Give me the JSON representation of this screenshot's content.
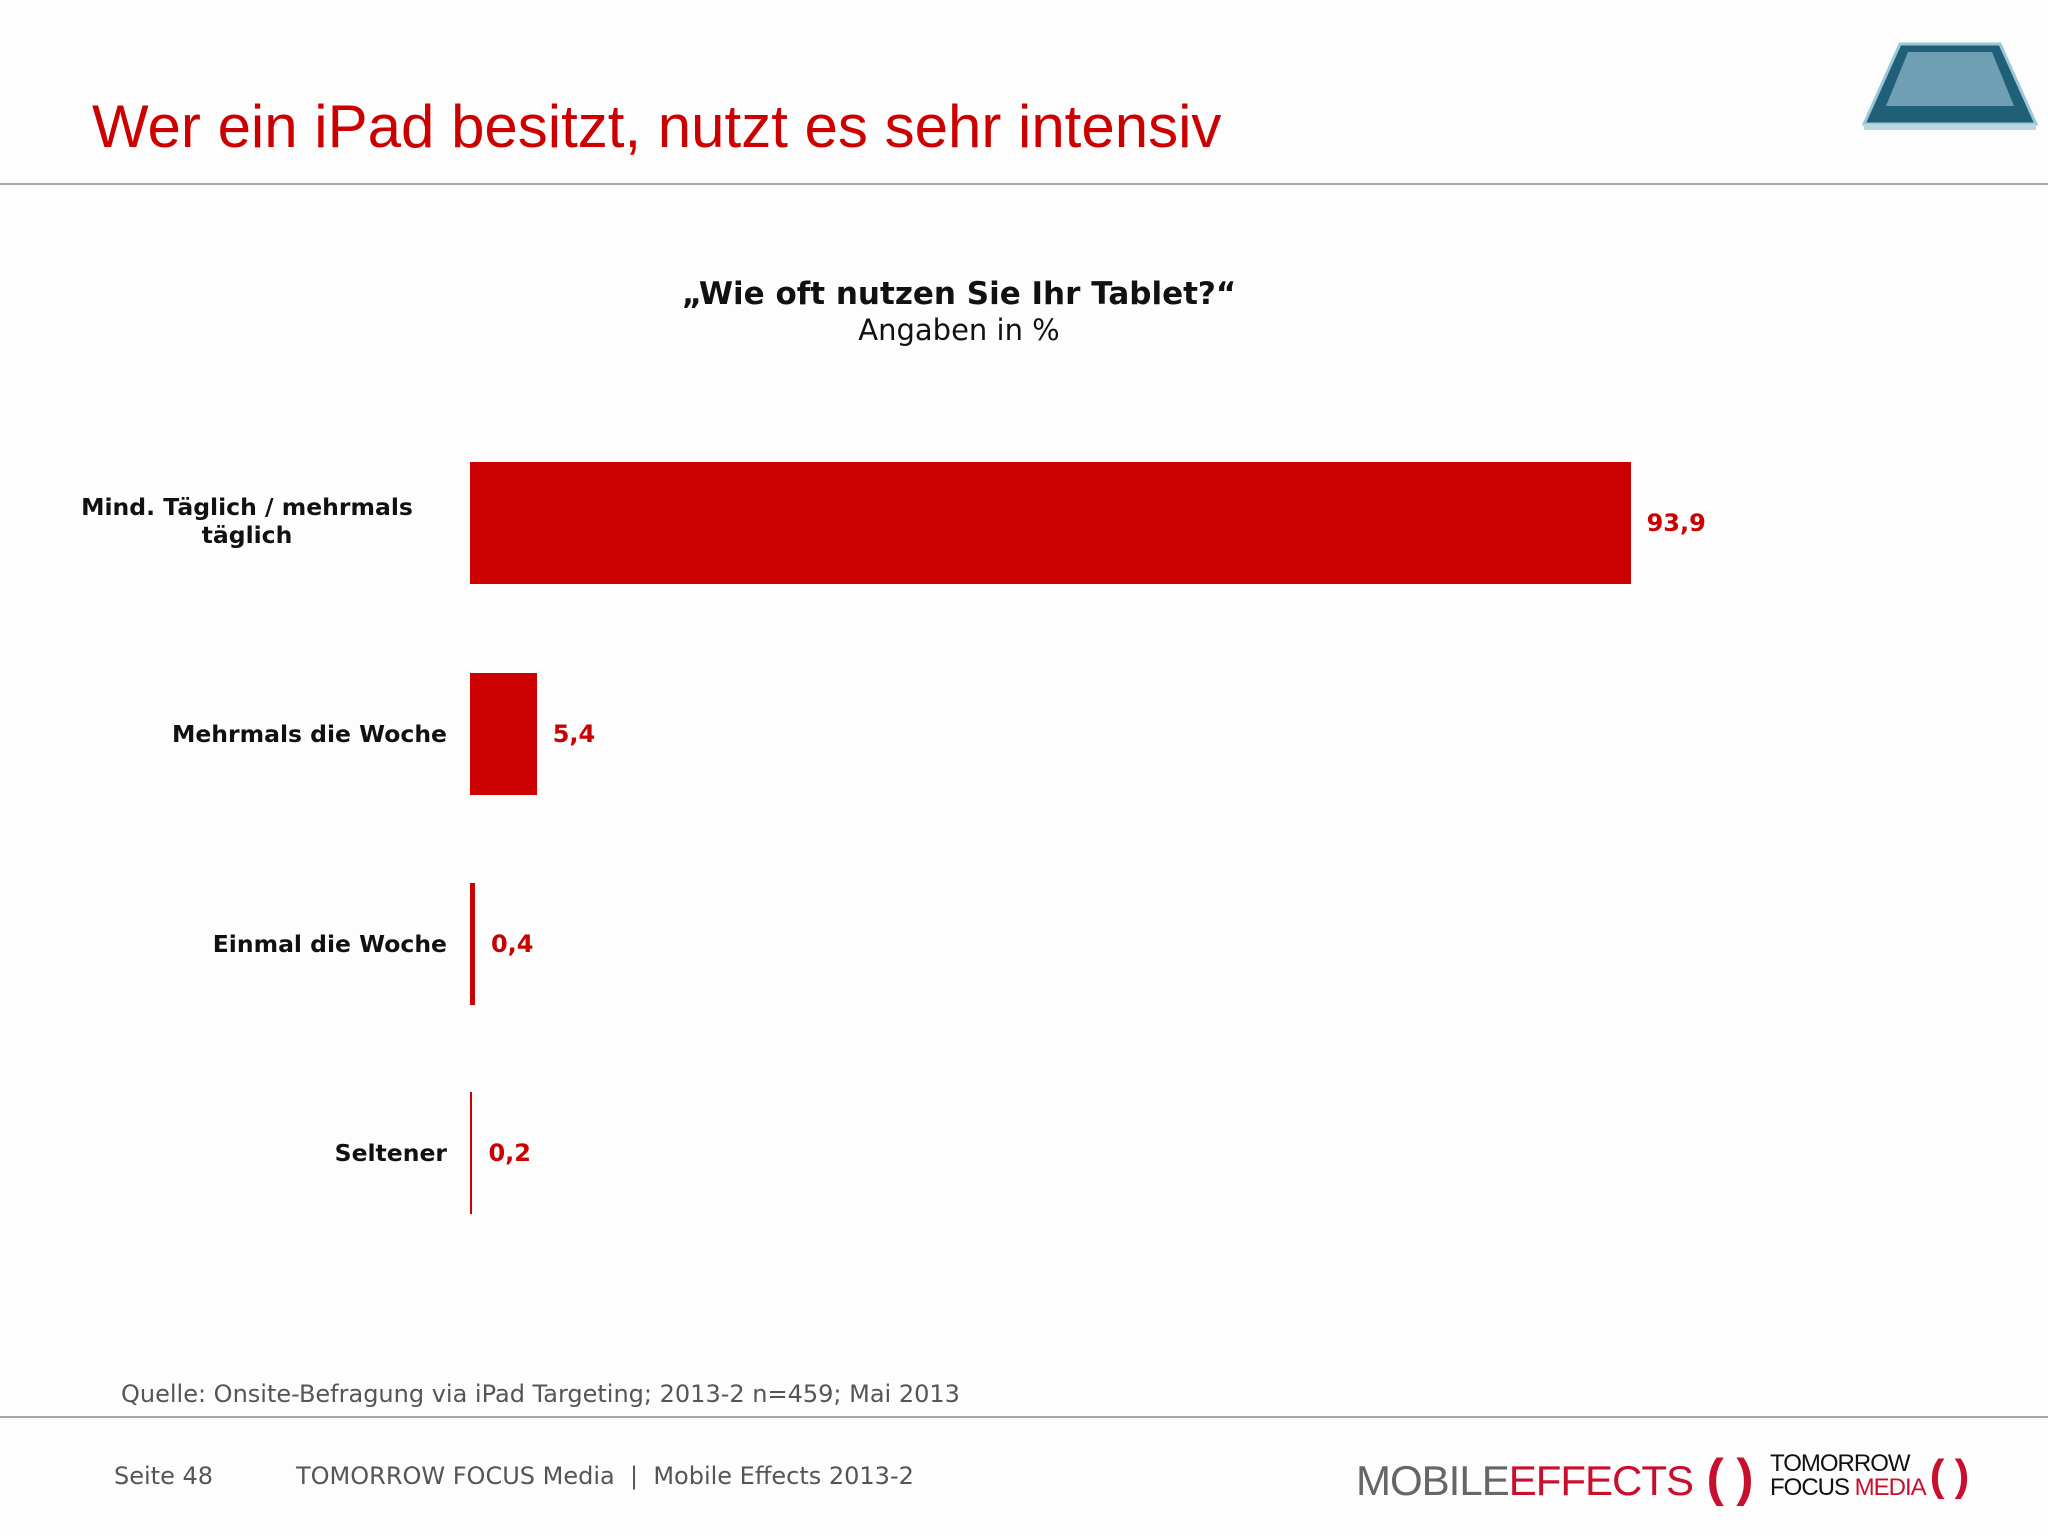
{
  "header": {
    "title": "Wer ein iPad besitzt, nutzt es sehr intensiv"
  },
  "chart_data": {
    "type": "bar",
    "orientation": "horizontal",
    "title": "„Wie oft nutzen Sie Ihr Tablet?“",
    "subtitle": "Angaben in %",
    "categories": [
      "Mind. Täglich / mehrmals täglich",
      "Mehrmals die Woche",
      "Einmal die Woche",
      "Seltener"
    ],
    "values": [
      93.9,
      5.4,
      0.4,
      0.2
    ],
    "value_labels": [
      "93,9",
      "5,4",
      "0,4",
      "0,2"
    ],
    "xlim": [
      0,
      100
    ],
    "grid": false,
    "color": "#cc0000"
  },
  "footer": {
    "source": "Quelle: Onsite-Befragung via iPad Targeting; 2013-2 n=459; Mai 2013",
    "page": "Seite 48",
    "company": "TOMORROW FOCUS Media  |  Mobile Effects 2013-2",
    "logo_mobile": "MOBILE",
    "logo_effects": "EFFECTS",
    "logo_tomorrow": "TOMORROW",
    "logo_focus": "FOCUS",
    "logo_media": "MEDIA"
  }
}
